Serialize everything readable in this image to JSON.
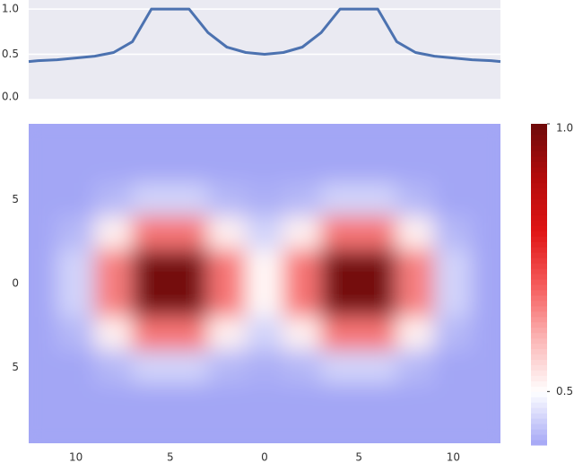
{
  "chart_data": [
    {
      "type": "line",
      "x": [
        -12.5,
        -12,
        -11,
        -10,
        -9,
        -8,
        -7,
        -6,
        -5,
        -4,
        -3,
        -2,
        -1,
        0,
        1,
        2,
        3,
        4,
        5,
        6,
        7,
        8,
        9,
        10,
        11,
        12,
        12.5
      ],
      "values": [
        0.42,
        0.43,
        0.44,
        0.46,
        0.48,
        0.52,
        0.64,
        1.0,
        1.0,
        1.0,
        0.74,
        0.58,
        0.52,
        0.5,
        0.52,
        0.58,
        0.74,
        1.0,
        1.0,
        1.0,
        0.64,
        0.52,
        0.48,
        0.46,
        0.44,
        0.43,
        0.42
      ],
      "color": "#4c72b0",
      "xlim": [
        -12.5,
        12.5
      ],
      "ylim": [
        0,
        1.1
      ],
      "yticks": [
        {
          "value": 0,
          "label": "0.0"
        },
        {
          "value": 0.5,
          "label": "0.5"
        },
        {
          "value": 1,
          "label": "1.0"
        }
      ],
      "grid": true
    },
    {
      "type": "contour",
      "x": [
        -12,
        -10,
        -8,
        -6,
        -4,
        -2,
        0,
        2,
        4,
        6,
        8,
        10,
        12
      ],
      "y": [
        9,
        7,
        5,
        3,
        1,
        -1,
        -3,
        -5,
        -7,
        -9
      ],
      "z": [
        [
          0.4,
          0.4,
          0.4,
          0.4,
          0.4,
          0.4,
          0.4,
          0.4,
          0.4,
          0.4,
          0.4,
          0.4,
          0.4
        ],
        [
          0.4,
          0.4,
          0.4,
          0.4,
          0.4,
          0.4,
          0.4,
          0.4,
          0.4,
          0.4,
          0.4,
          0.4,
          0.4
        ],
        [
          0.4,
          0.4,
          0.42,
          0.45,
          0.45,
          0.42,
          0.41,
          0.42,
          0.45,
          0.45,
          0.42,
          0.4,
          0.4
        ],
        [
          0.4,
          0.42,
          0.52,
          0.67,
          0.67,
          0.52,
          0.45,
          0.52,
          0.67,
          0.67,
          0.52,
          0.42,
          0.4
        ],
        [
          0.4,
          0.45,
          0.66,
          0.99,
          0.99,
          0.67,
          0.51,
          0.67,
          0.99,
          0.99,
          0.66,
          0.45,
          0.4
        ],
        [
          0.4,
          0.45,
          0.66,
          0.99,
          0.99,
          0.67,
          0.51,
          0.67,
          0.99,
          0.99,
          0.66,
          0.45,
          0.4
        ],
        [
          0.4,
          0.42,
          0.52,
          0.67,
          0.67,
          0.52,
          0.45,
          0.52,
          0.67,
          0.67,
          0.52,
          0.42,
          0.4
        ],
        [
          0.4,
          0.4,
          0.42,
          0.45,
          0.45,
          0.42,
          0.41,
          0.42,
          0.45,
          0.45,
          0.42,
          0.4,
          0.4
        ],
        [
          0.4,
          0.4,
          0.4,
          0.4,
          0.4,
          0.4,
          0.4,
          0.4,
          0.4,
          0.4,
          0.4,
          0.4,
          0.4
        ],
        [
          0.4,
          0.4,
          0.4,
          0.4,
          0.4,
          0.4,
          0.4,
          0.4,
          0.4,
          0.4,
          0.4,
          0.4,
          0.4
        ]
      ],
      "xlim": [
        -12.5,
        12.5
      ],
      "ylim": [
        -9.5,
        9.5
      ],
      "xticks": [
        {
          "value": -10,
          "label": "10"
        },
        {
          "value": -5,
          "label": "5"
        },
        0,
        5,
        10
      ],
      "yticks": [
        {
          "value": 5,
          "label": "5"
        },
        0,
        {
          "value": -5,
          "label": "5"
        }
      ],
      "clim": [
        0.4,
        1.0
      ],
      "cticks": [
        {
          "value": 0.5,
          "label": "0.5"
        },
        {
          "value": 1,
          "label": "1.0"
        }
      ],
      "colors": [
        "#a3a6f5",
        "#ffffff",
        "#fbb4b4",
        "#f55a5a",
        "#e01515",
        "#b30b0b",
        "#6e0a0a"
      ]
    }
  ]
}
